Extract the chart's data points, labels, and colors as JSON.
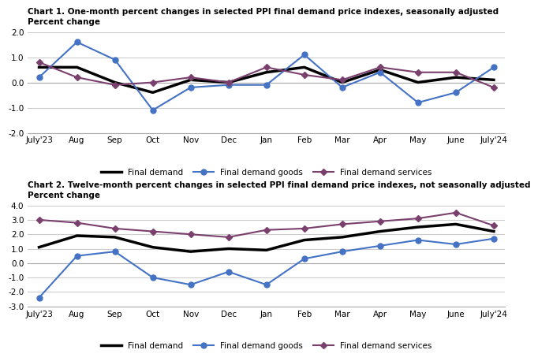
{
  "x_labels": [
    "July'23",
    "Aug",
    "Sep",
    "Oct",
    "Nov",
    "Dec",
    "Jan",
    "Feb",
    "Mar",
    "Apr",
    "May",
    "June",
    "July'24"
  ],
  "chart1_title": "Chart 1. One-month percent changes in selected PPI final demand price indexes, seasonally adjusted",
  "chart1_ylabel": "Percent change",
  "chart1_ylim": [
    -2.0,
    2.0
  ],
  "chart1_yticks": [
    -2.0,
    -1.0,
    0.0,
    1.0,
    2.0
  ],
  "chart1_final_demand": [
    0.6,
    0.6,
    0.0,
    -0.4,
    0.1,
    0.0,
    0.4,
    0.6,
    0.0,
    0.5,
    0.0,
    0.2,
    0.1
  ],
  "chart1_goods": [
    0.2,
    1.6,
    0.9,
    -1.1,
    -0.2,
    -0.1,
    -0.1,
    1.1,
    -0.2,
    0.4,
    -0.8,
    -0.4,
    0.6
  ],
  "chart1_services": [
    0.8,
    0.2,
    -0.1,
    0.0,
    0.2,
    0.0,
    0.6,
    0.3,
    0.1,
    0.6,
    0.4,
    0.4,
    -0.2
  ],
  "chart2_title": "Chart 2. Twelve-month percent changes in selected PPI final demand price indexes, not seasonally adjusted",
  "chart2_ylabel": "Percent change",
  "chart2_ylim": [
    -3.0,
    4.0
  ],
  "chart2_yticks": [
    -3.0,
    -2.0,
    -1.0,
    0.0,
    1.0,
    2.0,
    3.0,
    4.0
  ],
  "chart2_final_demand": [
    1.1,
    1.9,
    1.8,
    1.1,
    0.8,
    1.0,
    0.9,
    1.6,
    1.8,
    2.2,
    2.5,
    2.7,
    2.2
  ],
  "chart2_goods": [
    -2.4,
    0.5,
    0.8,
    -1.0,
    -1.5,
    -0.6,
    -1.5,
    0.3,
    0.8,
    1.2,
    1.6,
    1.3,
    1.7
  ],
  "chart2_services": [
    3.0,
    2.8,
    2.4,
    2.2,
    2.0,
    1.8,
    2.3,
    2.4,
    2.7,
    2.9,
    3.1,
    3.5,
    2.6
  ],
  "color_final_demand": "#000000",
  "color_goods": "#4472c4",
  "color_services": "#7b3f6e",
  "linewidth_main": 2.5,
  "linewidth_other": 1.5,
  "marker_size": 5,
  "bg_color": "#ffffff",
  "grid_color": "#cccccc",
  "title_fontsize": 7.5,
  "label_fontsize": 7.5,
  "tick_fontsize": 7.5,
  "legend_fontsize": 7.5
}
